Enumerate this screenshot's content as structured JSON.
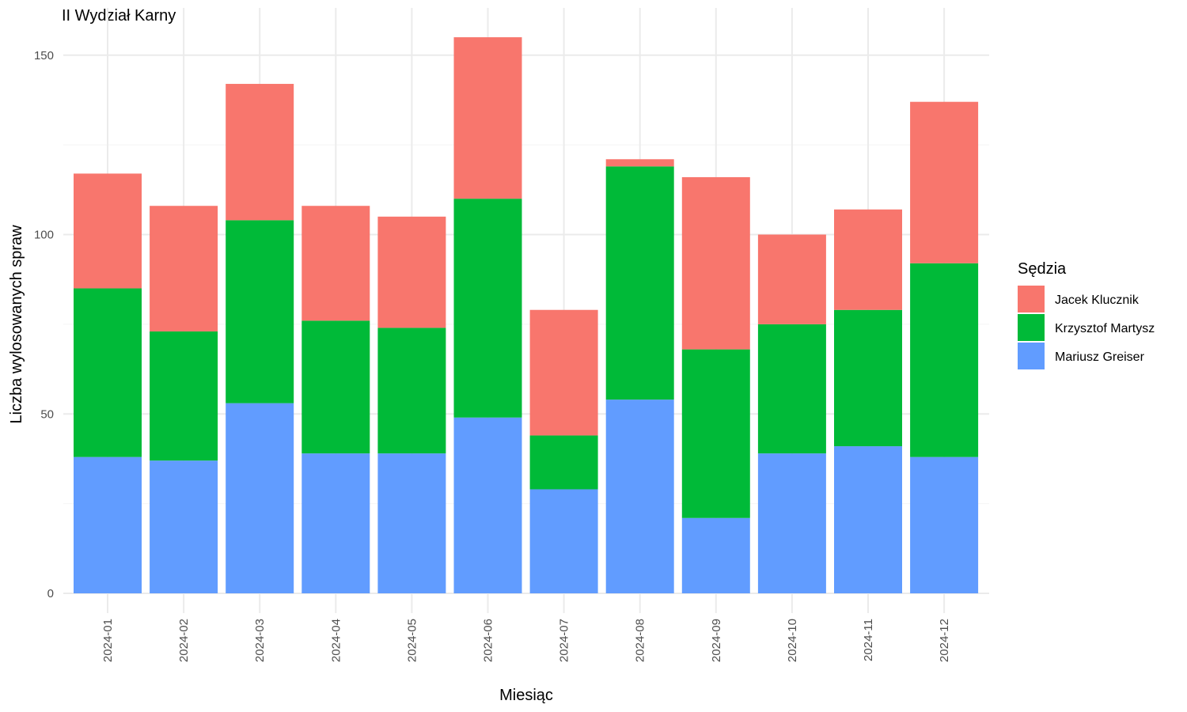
{
  "chart_data": {
    "type": "bar",
    "stacked": true,
    "title": "II Wydział Karny",
    "xlabel": "Miesiąc",
    "ylabel": "Liczba wylosowanych spraw",
    "ylim": [
      0,
      160
    ],
    "y_ticks": [
      0,
      50,
      100,
      150
    ],
    "grid": true,
    "categories": [
      "2024-01",
      "2024-02",
      "2024-03",
      "2024-04",
      "2024-05",
      "2024-06",
      "2024-07",
      "2024-08",
      "2024-09",
      "2024-10",
      "2024-11",
      "2024-12"
    ],
    "legend": {
      "title": "Sędzia",
      "position": "right"
    },
    "series": [
      {
        "name": "Mariusz Greiser",
        "color": "#619CFF",
        "values": [
          38,
          37,
          53,
          39,
          39,
          49,
          29,
          54,
          21,
          39,
          41,
          38
        ]
      },
      {
        "name": "Krzysztof Martysz",
        "color": "#00BA38",
        "values": [
          47,
          36,
          51,
          37,
          35,
          61,
          15,
          65,
          47,
          36,
          38,
          54
        ]
      },
      {
        "name": "Jacek Klucznik",
        "color": "#F8766D",
        "values": [
          32,
          35,
          38,
          32,
          31,
          45,
          35,
          2,
          48,
          25,
          28,
          45
        ]
      }
    ],
    "legend_order": [
      "Jacek Klucznik",
      "Krzysztof Martysz",
      "Mariusz Greiser"
    ]
  }
}
